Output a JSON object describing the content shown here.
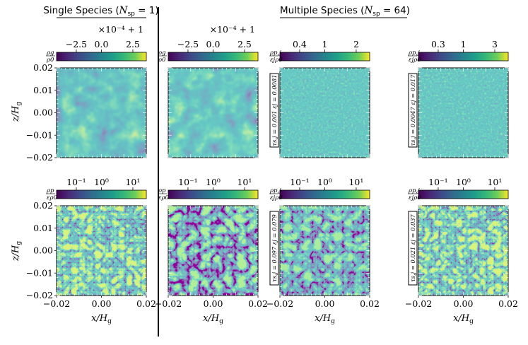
{
  "headers": {
    "single": "Single Species (N_sp = 1)",
    "multiple": "Multiple Species (N_sp = 64)"
  },
  "colorbars": [
    {
      "label_num": "ρg",
      "label_den": "ρ0",
      "ticks": [
        "−2.5",
        "0.0",
        "2.5"
      ],
      "offset": "×10⁻⁴ + 1"
    },
    {
      "label_num": "ρg",
      "label_den": "ρ0",
      "ticks": [
        "−2.5",
        "0.0",
        "2.5"
      ],
      "offset": "×10⁻⁴ + 1"
    },
    {
      "label_num": "ρp,j",
      "label_den": "εjρ0",
      "ticks": [
        "0.4",
        "1",
        "2"
      ],
      "offset": ""
    },
    {
      "label_num": "ρp,j",
      "label_den": "εjρ0",
      "ticks": [
        "0.3",
        "1",
        "3"
      ],
      "offset": ""
    },
    {
      "label_num": "ρp",
      "label_den": "ερ0",
      "ticks": [
        "10⁻¹",
        "10⁰",
        "10¹"
      ],
      "offset": ""
    },
    {
      "label_num": "ρp",
      "label_den": "ερ0",
      "ticks": [
        "10⁻¹",
        "10⁰",
        "10¹"
      ],
      "offset": ""
    },
    {
      "label_num": "ρp,j",
      "label_den": "εjρ0",
      "ticks": [
        "10⁻¹",
        "10⁰",
        "10¹"
      ],
      "offset": ""
    },
    {
      "label_num": "ρp,j",
      "label_den": "εjρ0",
      "ticks": [
        "10⁻¹",
        "10⁰",
        "10¹"
      ],
      "offset": ""
    }
  ],
  "panel_tags": [
    "τs,j = 0.001  εj = 0.0081",
    "τs,j = 0.0047  εj = 0.017",
    "τs,j = 0.097  εj = 0.079",
    "τs,j = 0.021  εj = 0.037"
  ],
  "axes": {
    "xlabel": "x/Hg",
    "ylabel": "z/Hg",
    "x_ticks": [
      "−0.02",
      "0.00",
      "0.02"
    ],
    "y_ticks": [
      "0.02",
      "0.01",
      "0.00",
      "−0.01",
      "−0.02"
    ]
  },
  "colormap": {
    "start": "#440154",
    "mid": "#21918c",
    "end": "#fde725"
  }
}
